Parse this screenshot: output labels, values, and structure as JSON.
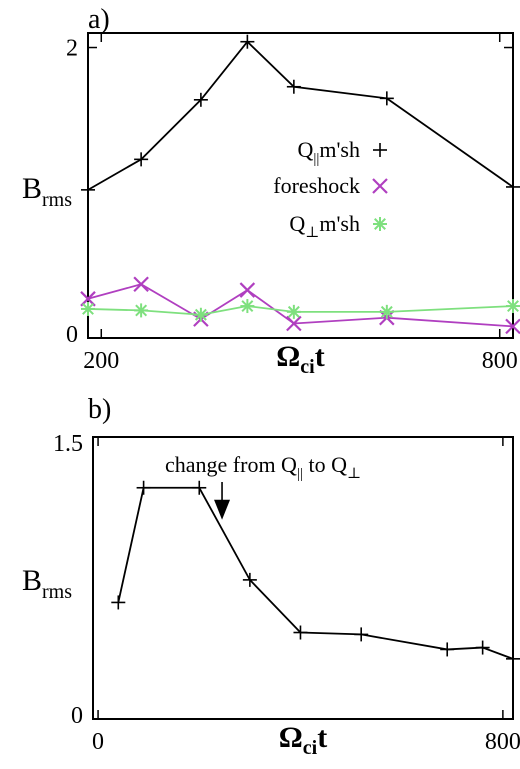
{
  "chart_data": [
    {
      "panel_label": "a)",
      "type": "line",
      "xlabel_main": "Ω",
      "xlabel_sub": "ci",
      "xlabel_tail": "t",
      "ylabel_main": "B",
      "ylabel_sub": "rms",
      "xlim": [
        180,
        820
      ],
      "ylim": [
        0,
        2.1
      ],
      "x_ticks": [
        200,
        800
      ],
      "y_ticks": [
        0,
        2
      ],
      "series": [
        {
          "name_main": "Q",
          "name_sub": "||",
          "name_tail": "m'sh",
          "marker_glyph": "+",
          "color": "#000000",
          "x": [
            180,
            260,
            350,
            420,
            490,
            630,
            820
          ],
          "y": [
            1.02,
            1.23,
            1.64,
            2.04,
            1.73,
            1.65,
            1.04
          ]
        },
        {
          "name_main": "foreshock",
          "marker_glyph": "×",
          "color": "#b03fc0",
          "x": [
            180,
            260,
            350,
            420,
            490,
            630,
            820
          ],
          "y": [
            0.27,
            0.37,
            0.13,
            0.33,
            0.1,
            0.14,
            0.08
          ]
        },
        {
          "name_main": "Q",
          "name_sub": "⊥",
          "name_tail": "m'sh",
          "marker_glyph": "*",
          "color": "#7ee07e",
          "x": [
            180,
            260,
            350,
            420,
            490,
            630,
            820
          ],
          "y": [
            0.2,
            0.19,
            0.16,
            0.22,
            0.18,
            0.18,
            0.22
          ]
        }
      ]
    },
    {
      "panel_label": "b)",
      "type": "line",
      "xlabel_main": "Ω",
      "xlabel_sub": "ci",
      "xlabel_tail": "t",
      "ylabel_main": "B",
      "ylabel_sub": "rms",
      "xlim": [
        -10,
        820
      ],
      "ylim": [
        0,
        1.5
      ],
      "x_ticks": [
        0,
        800
      ],
      "y_ticks": [
        0,
        1.5
      ],
      "annotation": {
        "text_pre": "change from Q",
        "sub1": "||",
        "text_mid": " to Q",
        "sub2": "⊥",
        "target_x": 245,
        "target_y": 1.06
      },
      "series": [
        {
          "color": "#000000",
          "x": [
            40,
            90,
            200,
            300,
            400,
            520,
            690,
            760,
            820
          ],
          "y": [
            0.62,
            1.23,
            1.23,
            0.74,
            0.46,
            0.45,
            0.37,
            0.38,
            0.32
          ]
        }
      ]
    }
  ]
}
